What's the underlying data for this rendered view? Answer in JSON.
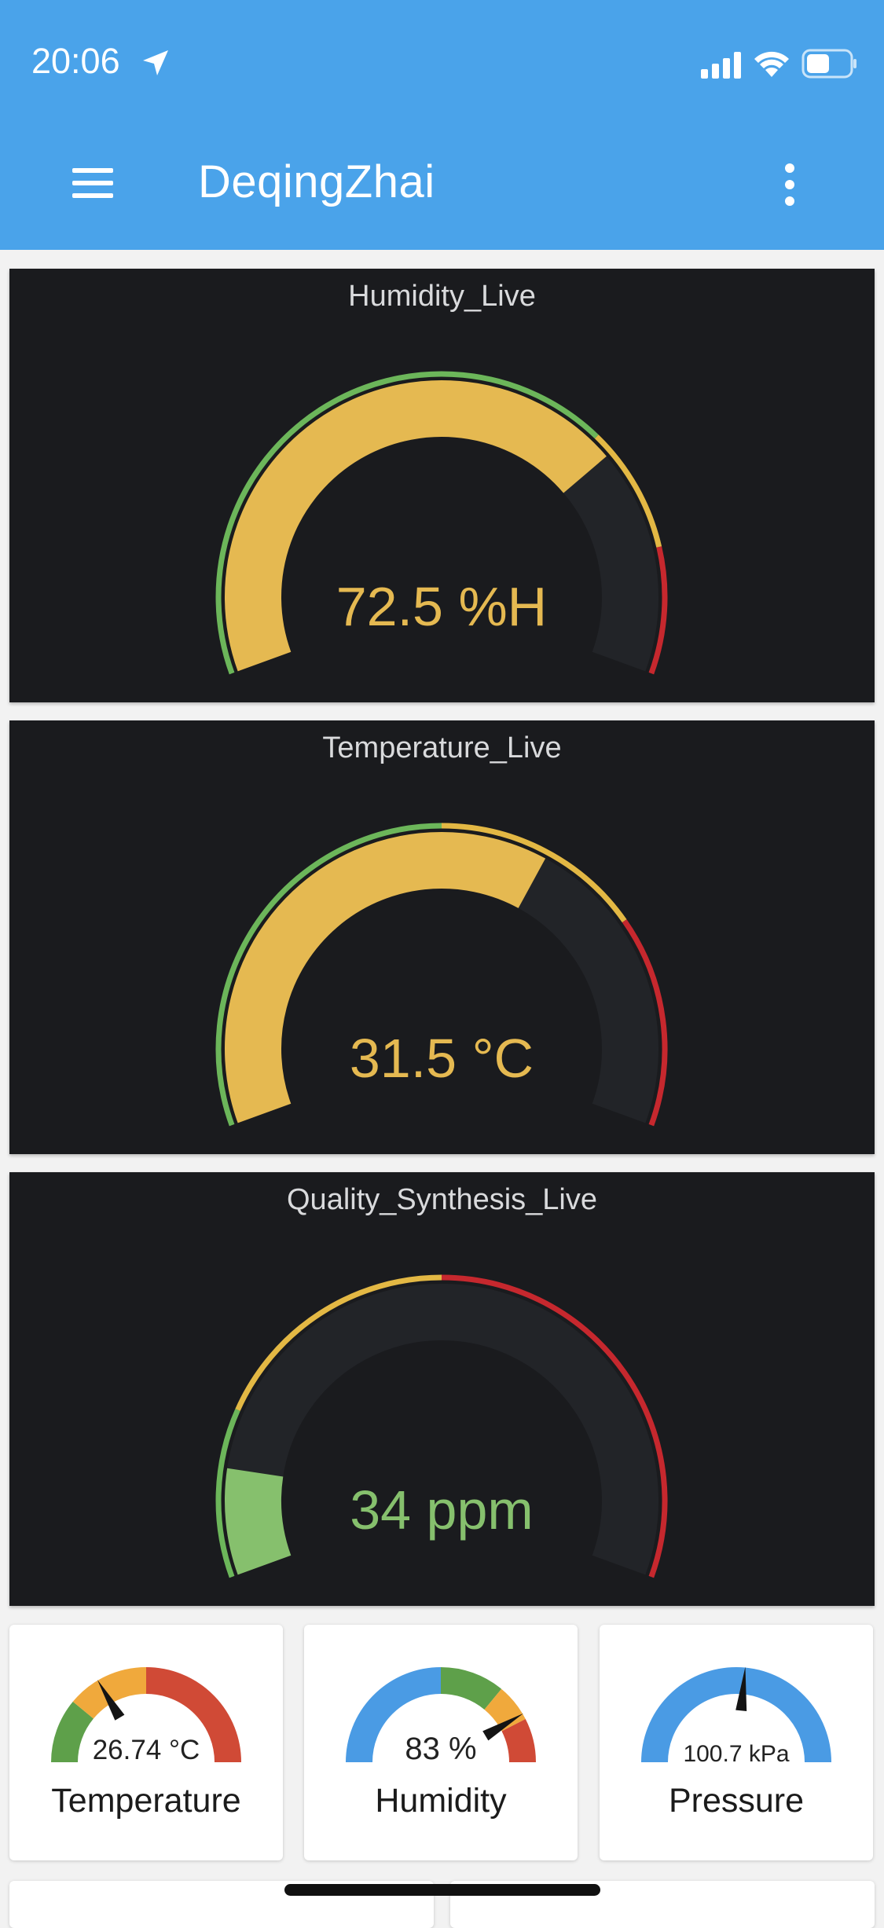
{
  "status_bar": {
    "time": "20:06",
    "icons": [
      "location-arrow-icon",
      "signal-icon",
      "wifi-icon",
      "battery-icon"
    ]
  },
  "app_bar": {
    "title": "DeqingZhai",
    "menu_icon": "hamburger-menu-icon",
    "more_icon": "more-vertical-icon"
  },
  "colors": {
    "app_bar": "#4aa3ea",
    "panel_bg": "#1a1b1e",
    "track": "#222428",
    "fill_yellow": "#e5b951",
    "fill_green": "#86c06d",
    "threshold_green": "#6cb65a",
    "threshold_yellow": "#e3b844",
    "threshold_red": "#c6282e"
  },
  "panels": [
    {
      "title": "Humidity_Live",
      "value": "72.5 %H",
      "percent": 0.725,
      "value_color": "#e5b951",
      "thresholds": [
        {
          "from": 0,
          "to": 0.7,
          "color": "#6cb65a"
        },
        {
          "from": 0.7,
          "to": 0.85,
          "color": "#e3b844"
        },
        {
          "from": 0.85,
          "to": 1,
          "color": "#c6282e"
        }
      ]
    },
    {
      "title": "Temperature_Live",
      "value": "31.5 °C",
      "percent": 0.63,
      "value_color": "#e5b951",
      "thresholds": [
        {
          "from": 0,
          "to": 0.5,
          "color": "#6cb65a"
        },
        {
          "from": 0.5,
          "to": 0.75,
          "color": "#e3b844"
        },
        {
          "from": 0.75,
          "to": 1,
          "color": "#c6282e"
        }
      ]
    },
    {
      "title": "Quality_Synthesis_Live",
      "value": "34 ppm",
      "percent": 0.13,
      "value_color": "#86c06d",
      "thresholds": [
        {
          "from": 0,
          "to": 0.2,
          "color": "#6cb65a"
        },
        {
          "from": 0.2,
          "to": 0.5,
          "color": "#e3b844"
        },
        {
          "from": 0.5,
          "to": 1,
          "color": "#c6282e"
        }
      ]
    }
  ],
  "cards": [
    {
      "label": "Temperature",
      "value": "26.74 °C",
      "needle": 0.33,
      "segments": [
        {
          "from": 0,
          "to": 0.22,
          "color": "#5ea04a"
        },
        {
          "from": 0.22,
          "to": 0.5,
          "color": "#f0a93c"
        },
        {
          "from": 0.5,
          "to": 1,
          "color": "#d04a36"
        }
      ]
    },
    {
      "label": "Humidity",
      "value": "83 %",
      "needle": 0.83,
      "segments": [
        {
          "from": 0,
          "to": 0.5,
          "color": "#4a9be4"
        },
        {
          "from": 0.5,
          "to": 0.72,
          "color": "#5ea04a"
        },
        {
          "from": 0.72,
          "to": 0.85,
          "color": "#f0a93c"
        },
        {
          "from": 0.85,
          "to": 1,
          "color": "#d04a36"
        }
      ]
    },
    {
      "label": "Pressure",
      "value": "100.7 kPa",
      "needle": 0.53,
      "segments": [
        {
          "from": 0,
          "to": 1,
          "color": "#4a9be4"
        }
      ]
    }
  ]
}
